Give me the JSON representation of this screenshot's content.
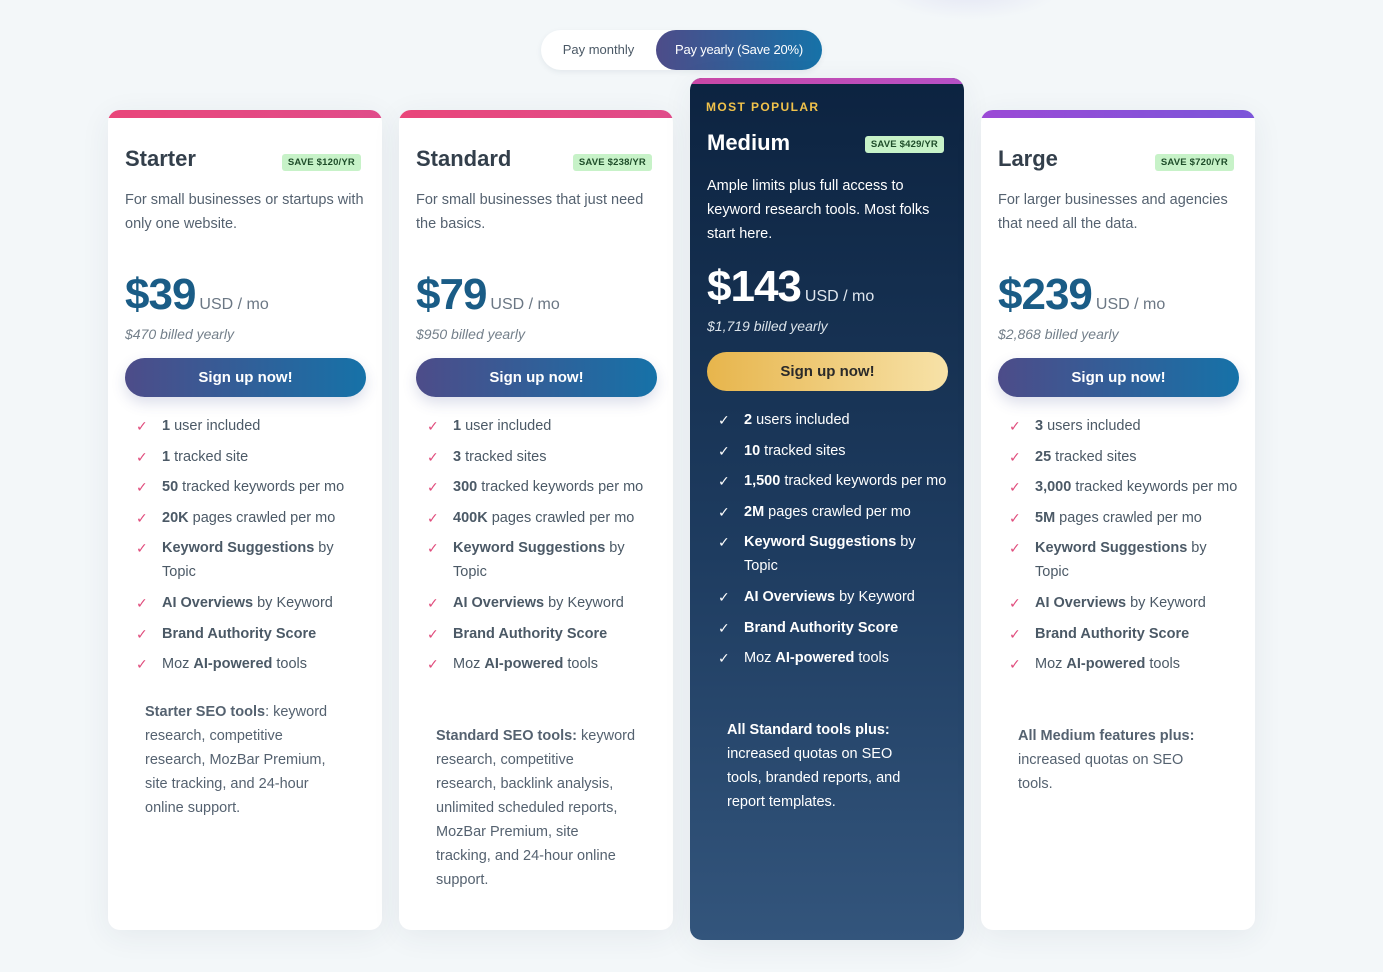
{
  "toggle": {
    "monthly_label": "Pay monthly",
    "yearly_label": "Pay yearly (Save 20%)",
    "selected": "yearly"
  },
  "colors": {
    "accent_gradient_start": "#4d4c89",
    "accent_gradient_end": "#1672a8",
    "popular_bg": "#0c2340",
    "save_badge": "#c7f2c8",
    "check": "#e04c7c",
    "gold": "#f1c24b"
  },
  "plans": [
    {
      "name": "Starter",
      "save": "SAVE $120/YR",
      "description": "For small businesses or startups with only one website.",
      "price": "$39",
      "unit": "USD / mo",
      "billed": "$470 billed yearly",
      "cta": "Sign up now!",
      "features": [
        {
          "b": "1",
          "t": " user included"
        },
        {
          "b": "1",
          "t": " tracked site"
        },
        {
          "b": "50",
          "t": " tracked keywords per mo"
        },
        {
          "b": "20K",
          "t": " pages crawled per mo"
        },
        {
          "b": "Keyword Suggestions",
          "t": " by Topic"
        },
        {
          "b": "AI Overviews",
          "t": " by Keyword"
        },
        {
          "b": "Brand Authority Score",
          "t": ""
        },
        {
          "pre": "Moz ",
          "b": "AI-powered",
          "t": " tools"
        }
      ],
      "summary_bold": "Starter SEO tools",
      "summary_text": ": keyword research, competitive research, MozBar Premium, site tracking, and 24-hour online support."
    },
    {
      "name": "Standard",
      "save": "SAVE $238/YR",
      "description": "For small businesses that just need the basics.",
      "price": "$79",
      "unit": "USD / mo",
      "billed": "$950 billed yearly",
      "cta": "Sign up now!",
      "features": [
        {
          "b": "1",
          "t": " user included"
        },
        {
          "b": "3",
          "t": " tracked sites"
        },
        {
          "b": "300",
          "t": " tracked keywords per mo"
        },
        {
          "b": "400K",
          "t": " pages crawled per mo"
        },
        {
          "b": "Keyword Suggestions",
          "t": " by Topic"
        },
        {
          "b": "AI Overviews",
          "t": " by Keyword"
        },
        {
          "b": "Brand Authority Score",
          "t": ""
        },
        {
          "pre": "Moz ",
          "b": "AI-powered",
          "t": " tools"
        }
      ],
      "summary_bold": "Standard SEO tools:",
      "summary_text": " keyword research, competitive research, backlink analysis, unlimited scheduled reports, MozBar Premium, site tracking, and 24-hour online support."
    },
    {
      "popular": "MOST POPULAR",
      "name": "Medium",
      "save": "SAVE $429/YR",
      "description": "Ample limits plus full access to keyword research tools. Most folks start here.",
      "price": "$143",
      "unit": "USD / mo",
      "billed": "$1,719 billed yearly",
      "cta": "Sign up now!",
      "features": [
        {
          "b": "2",
          "t": " users included"
        },
        {
          "b": "10",
          "t": " tracked sites"
        },
        {
          "b": "1,500",
          "t": " tracked keywords per mo"
        },
        {
          "b": "2M",
          "t": " pages crawled per mo"
        },
        {
          "b": "Keyword Suggestions",
          "t": " by Topic"
        },
        {
          "b": "AI Overviews",
          "t": " by Keyword"
        },
        {
          "b": "Brand Authority Score",
          "t": ""
        },
        {
          "pre": "Moz ",
          "b": "AI-powered",
          "t": " tools"
        }
      ],
      "summary_bold": "All Standard tools plus:",
      "summary_text": " increased quotas on SEO tools, branded reports, and report templates."
    },
    {
      "name": "Large",
      "save": "SAVE $720/YR",
      "description": "For larger businesses and agencies that need all the data.",
      "price": "$239",
      "unit": "USD / mo",
      "billed": "$2,868 billed yearly",
      "cta": "Sign up now!",
      "features": [
        {
          "b": "3",
          "t": " users included"
        },
        {
          "b": "25",
          "t": " tracked sites"
        },
        {
          "b": "3,000",
          "t": " tracked keywords per mo"
        },
        {
          "b": "5M",
          "t": " pages crawled per mo"
        },
        {
          "b": "Keyword Suggestions",
          "t": " by Topic"
        },
        {
          "b": "AI Overviews",
          "t": " by Keyword"
        },
        {
          "b": "Brand Authority Score",
          "t": ""
        },
        {
          "pre": "Moz ",
          "b": "AI-powered",
          "t": " tools"
        }
      ],
      "summary_bold": "All Medium features plus:",
      "summary_text": " increased quotas on SEO tools."
    }
  ]
}
